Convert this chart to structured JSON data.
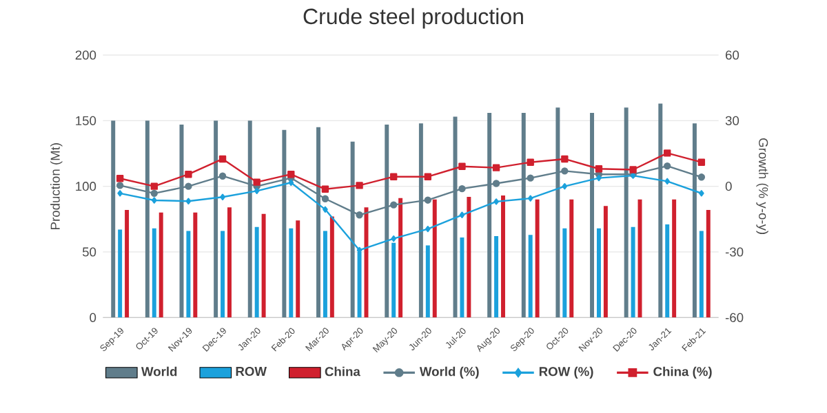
{
  "chart_data": {
    "type": "bar",
    "title": "Crude steel production",
    "ylabel": "Production (Mt)",
    "y2label": "Growth (% y-o-y)",
    "categories": [
      "Sep-19",
      "Oct-19",
      "Nov-19",
      "Dec-19",
      "Jan-20",
      "Feb-20",
      "Mar-20",
      "Apr-20",
      "May-20",
      "Jun-20",
      "Jul-20",
      "Aug-20",
      "Sep-20",
      "Oct-20",
      "Nov-20",
      "Dec-20",
      "Jan-21",
      "Feb-21"
    ],
    "series": [
      {
        "name": "World",
        "color": "#607d8b",
        "values": [
          150,
          150,
          147,
          150,
          150,
          143,
          145,
          134,
          147,
          148,
          153,
          156,
          156,
          160,
          156,
          160,
          163,
          148
        ]
      },
      {
        "name": "ROW",
        "color": "#1ba1dc",
        "values": [
          67,
          68,
          66,
          66,
          69,
          68,
          66,
          50,
          57,
          55,
          61,
          62,
          63,
          68,
          68,
          69,
          71,
          66
        ]
      },
      {
        "name": "China",
        "color": "#d0202e",
        "values": [
          82,
          80,
          80,
          84,
          79,
          74,
          77,
          84,
          91,
          90,
          92,
          93,
          90,
          90,
          85,
          90,
          90,
          82
        ]
      },
      {
        "name": "World (%)",
        "type": "line",
        "axis": "y2",
        "marker": "circle",
        "color": "#607d8b",
        "values": [
          0.4,
          -3.2,
          0,
          4.7,
          0,
          3.8,
          -5.7,
          -13.1,
          -8.5,
          -6.3,
          -1.1,
          1.3,
          3.8,
          7,
          5.5,
          5.5,
          9.3,
          4.2
        ]
      },
      {
        "name": "ROW (%)",
        "type": "line",
        "axis": "y2",
        "marker": "diamond",
        "color": "#1ba1dc",
        "values": [
          -3.2,
          -6.4,
          -6.8,
          -4.9,
          -2.1,
          1.7,
          -10.6,
          -29.2,
          -23.9,
          -19.5,
          -13.1,
          -7,
          -5.5,
          0,
          3.8,
          4.9,
          2.3,
          -3.2
        ]
      },
      {
        "name": "China (%)",
        "type": "line",
        "axis": "y2",
        "marker": "square",
        "color": "#d0202e",
        "values": [
          3.6,
          0,
          5.5,
          12.5,
          1.9,
          5.5,
          -1.3,
          0.4,
          4.4,
          4.4,
          9.1,
          8.5,
          11,
          12.5,
          8,
          7.6,
          15.2,
          11
        ]
      }
    ],
    "ylim": [
      0,
      200
    ],
    "yticks": [
      0,
      50,
      100,
      150,
      200
    ],
    "y2lim": [
      -60,
      60
    ],
    "y2ticks": [
      -60,
      -30,
      0,
      30,
      60
    ],
    "grid": "y",
    "legend": "bottom"
  }
}
